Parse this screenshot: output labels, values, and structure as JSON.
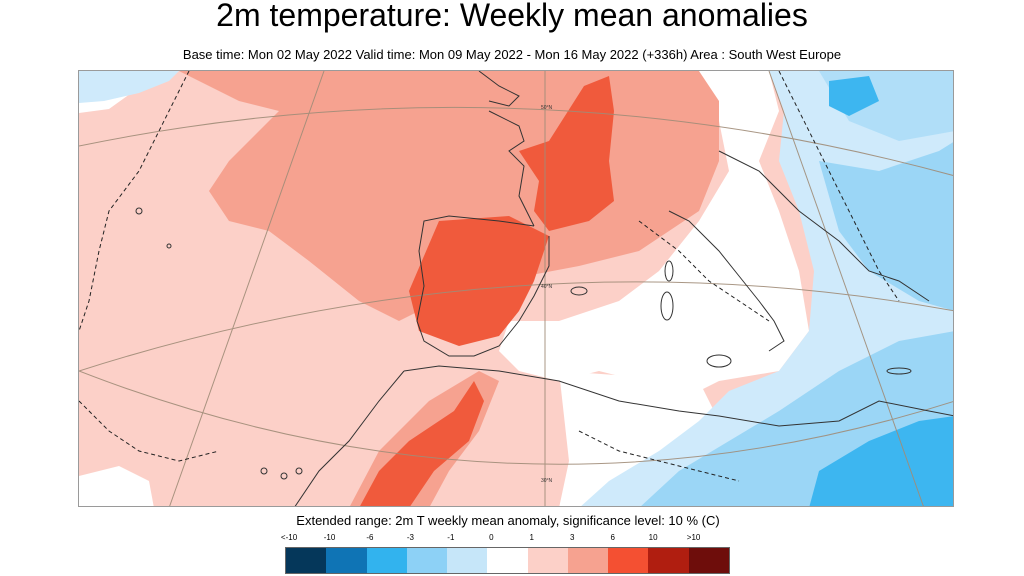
{
  "title": "2m temperature: Weekly mean anomalies",
  "subtitle": "Base time: Mon 02 May 2022 Valid time: Mon 09 May 2022 - Mon 16 May 2022 (+336h) Area : South West Europe",
  "map": {
    "area": "South West Europe",
    "colors": {
      "background": "#ffffff",
      "warm_1_3": "#fcd0c8",
      "warm_3_6": "#f6a290",
      "warm_6_10": "#f05a3c",
      "warm_10_plus": "#b01c10",
      "cool_0_1": "#cfeafb",
      "cool_1_3": "#9bd6f6",
      "cool_3_6": "#3db6f0",
      "coast": "#333333",
      "graticule": "#a08c78",
      "contour": "#222222"
    },
    "lat_labels": [
      "50°N",
      "40°N",
      "30°N"
    ]
  },
  "legend": {
    "title": "Extended range: 2m T weekly mean anomaly, significance level: 10 % (C)",
    "ticks": [
      "<-10",
      "-10",
      "-6",
      "-3",
      "-1",
      "0",
      "1",
      "3",
      "6",
      "10",
      ">10"
    ],
    "colors": [
      "#05375a",
      "#0f74b5",
      "#32b3ee",
      "#8dd1f6",
      "#c6e6f9",
      "#ffffff",
      "#fcd0c8",
      "#f6a290",
      "#f45032",
      "#b01e10",
      "#6e0d0b"
    ]
  }
}
